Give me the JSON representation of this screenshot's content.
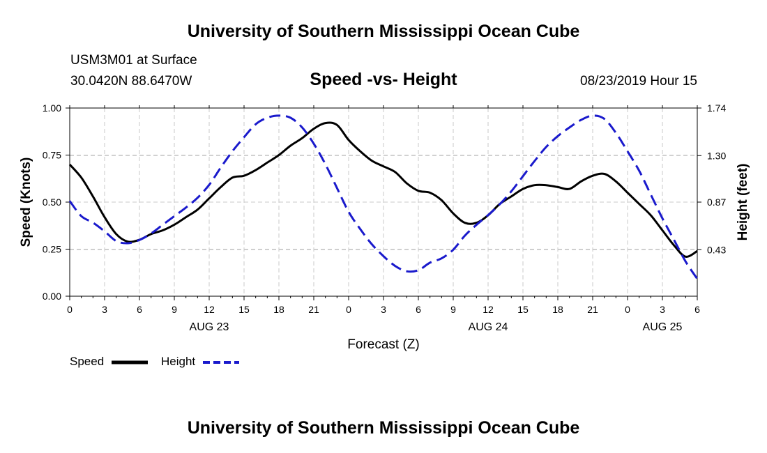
{
  "header": {
    "title": "University of Southern Mississippi Ocean Cube",
    "station": "USM3M01 at Surface",
    "coordinates": "30.0420N 88.6470W",
    "chart_title": "Speed -vs- Height",
    "run_time": "08/23/2019 Hour 15"
  },
  "footer": {
    "title": "University of Southern Mississippi Ocean Cube"
  },
  "legend": {
    "speed_label": "Speed",
    "height_label": "Height"
  },
  "colors": {
    "speed": "#000000",
    "height": "#1a1acc",
    "grid": "#c8c8c8"
  },
  "chart_data": {
    "type": "line",
    "title": "Speed -vs- Height",
    "xlabel": "Forecast (Z)",
    "ylabel": "Speed (Knots)",
    "y2label": "Height (feet)",
    "xlim": [
      0,
      54
    ],
    "ylim": [
      0,
      1.0
    ],
    "y2lim": [
      0,
      1.74
    ],
    "x_tick_values": [
      0,
      3,
      6,
      9,
      12,
      15,
      18,
      21,
      24,
      27,
      30,
      33,
      36,
      39,
      42,
      45,
      48,
      51,
      54
    ],
    "x_tick_labels": [
      "0",
      "3",
      "6",
      "9",
      "12",
      "15",
      "18",
      "21",
      "0",
      "3",
      "6",
      "9",
      "12",
      "15",
      "18",
      "21",
      "0",
      "3",
      "6"
    ],
    "date_labels": [
      {
        "x": 12,
        "label": "AUG 23"
      },
      {
        "x": 36,
        "label": "AUG 24"
      },
      {
        "x": 51,
        "label": "AUG 25"
      }
    ],
    "y_ticks": [
      0,
      0.25,
      0.5,
      0.75,
      1.0
    ],
    "y_tick_labels": [
      "0.00",
      "0.25",
      "0.50",
      "0.75",
      "1.00"
    ],
    "y2_ticks": [
      0.43,
      0.87,
      1.3,
      1.74
    ],
    "y2_tick_labels": [
      "0.43",
      "0.87",
      "1.30",
      "1.74"
    ],
    "grid": true,
    "series": [
      {
        "name": "Speed",
        "axis": "left",
        "style": "solid",
        "x": [
          0,
          1,
          2,
          3,
          4,
          5,
          6,
          7,
          8,
          9,
          10,
          11,
          12,
          13,
          14,
          15,
          16,
          17,
          18,
          19,
          20,
          21,
          22,
          23,
          24,
          25,
          26,
          27,
          28,
          29,
          30,
          31,
          32,
          33,
          34,
          35,
          36,
          37,
          38,
          39,
          40,
          41,
          42,
          43,
          44,
          45,
          46,
          47,
          48,
          49,
          50,
          51,
          52,
          53,
          54
        ],
        "values": [
          0.7,
          0.63,
          0.53,
          0.42,
          0.33,
          0.29,
          0.3,
          0.33,
          0.35,
          0.38,
          0.42,
          0.46,
          0.52,
          0.58,
          0.63,
          0.64,
          0.67,
          0.71,
          0.75,
          0.8,
          0.84,
          0.89,
          0.92,
          0.91,
          0.83,
          0.77,
          0.72,
          0.69,
          0.66,
          0.6,
          0.56,
          0.55,
          0.51,
          0.44,
          0.39,
          0.39,
          0.43,
          0.49,
          0.53,
          0.57,
          0.59,
          0.59,
          0.58,
          0.57,
          0.61,
          0.64,
          0.65,
          0.61,
          0.55,
          0.49,
          0.43,
          0.35,
          0.27,
          0.21,
          0.24
        ]
      },
      {
        "name": "Height",
        "axis": "right",
        "style": "dashed",
        "x": [
          0,
          1,
          2,
          3,
          4,
          5,
          6,
          7,
          8,
          9,
          10,
          11,
          12,
          13,
          14,
          15,
          16,
          17,
          18,
          19,
          20,
          21,
          22,
          23,
          24,
          25,
          26,
          27,
          28,
          29,
          30,
          31,
          32,
          33,
          34,
          35,
          36,
          37,
          38,
          39,
          40,
          41,
          42,
          43,
          44,
          45,
          46,
          47,
          48,
          49,
          50,
          51,
          52,
          53,
          54
        ],
        "values": [
          0.88,
          0.74,
          0.68,
          0.6,
          0.51,
          0.49,
          0.52,
          0.58,
          0.66,
          0.74,
          0.82,
          0.91,
          1.03,
          1.19,
          1.34,
          1.47,
          1.59,
          1.65,
          1.67,
          1.65,
          1.56,
          1.41,
          1.22,
          1.0,
          0.78,
          0.62,
          0.48,
          0.37,
          0.28,
          0.23,
          0.24,
          0.31,
          0.35,
          0.43,
          0.56,
          0.66,
          0.75,
          0.85,
          0.97,
          1.11,
          1.25,
          1.38,
          1.48,
          1.56,
          1.63,
          1.67,
          1.64,
          1.51,
          1.34,
          1.16,
          0.94,
          0.72,
          0.52,
          0.32,
          0.16
        ]
      }
    ]
  }
}
